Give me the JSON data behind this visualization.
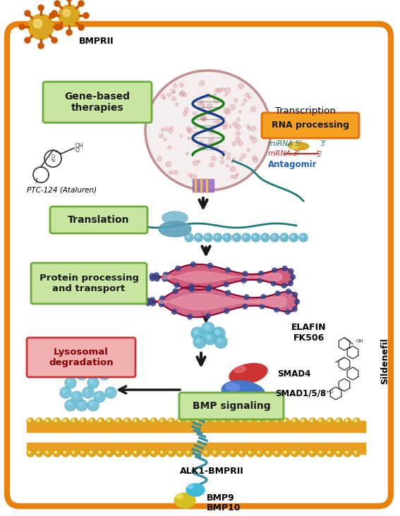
{
  "fig_width": 5.67,
  "fig_height": 7.32,
  "dpi": 100,
  "bg_color": "#ffffff",
  "cell_border_color": "#e8820c",
  "cell_border_lw": 6,
  "cell_fill": "#ffffff",
  "labels": {
    "BMPRII": "BMPRII",
    "gene_based": "Gene-based\ntherapies",
    "transcription": "Transcription",
    "rna_processing": "RNA processing",
    "antagomir": "Antagomir",
    "ptc124": "PTC-124 (Ataluren)",
    "translation": "Translation",
    "protein": "Protein processing\nand transport",
    "lysosomal": "Lysosomal\ndegradation",
    "smad4": "SMAD4",
    "smad158": "SMAD1/5/8",
    "bmp_signaling": "BMP signaling",
    "elafin_fk506": "ELAFIN\nFK506",
    "sildenefil": "Sildenefil",
    "alk1": "ALK1-BMPRII",
    "bmp9": "BMP9",
    "bmp10": "BMP10"
  },
  "colors": {
    "membrane_color": "#daa520",
    "gene_box": "#c8e6a0",
    "gene_box_border": "#6aaa3a",
    "rna_box": "#f5a020",
    "rna_box_border": "#e07010",
    "translation_box": "#c8e6a0",
    "translation_box_border": "#6aaa3a",
    "protein_box": "#c8e6a0",
    "protein_box_border": "#6aaa3a",
    "lysosomal_box": "#f0b0b0",
    "lysosomal_box_border": "#cc3333",
    "bmp_box": "#c8e6a0",
    "bmp_box_border": "#6aaa3a",
    "smad4_color": "#cc3333",
    "smad158_color": "#4477cc",
    "nucleus_fill": "#f5eeee",
    "nucleus_border": "#c09090",
    "er_fill": "#cc5070",
    "er_border": "#880030",
    "vesicle_color": "#60b8d0",
    "bmp9_color": "#d4c020",
    "bmp10_color": "#40b8d8",
    "virus_color": "#daa520",
    "virus_spike": "#cc5500",
    "dna_green": "#1a7a1a",
    "dna_blue": "#1a3a8a",
    "ribosome_color": "#70b8d0",
    "arrow_color": "#1a1a1a",
    "mirna_text": "#207070",
    "mrna_text": "#cc2020",
    "antagomir_text": "#2060c0",
    "mirna_strand_color": "#daa520",
    "alk_color": "#3a8fa0",
    "pore_color": "#9966cc",
    "pore_bar": "#f0c060",
    "lyso_text": "#880000",
    "chem_color": "#333333"
  }
}
